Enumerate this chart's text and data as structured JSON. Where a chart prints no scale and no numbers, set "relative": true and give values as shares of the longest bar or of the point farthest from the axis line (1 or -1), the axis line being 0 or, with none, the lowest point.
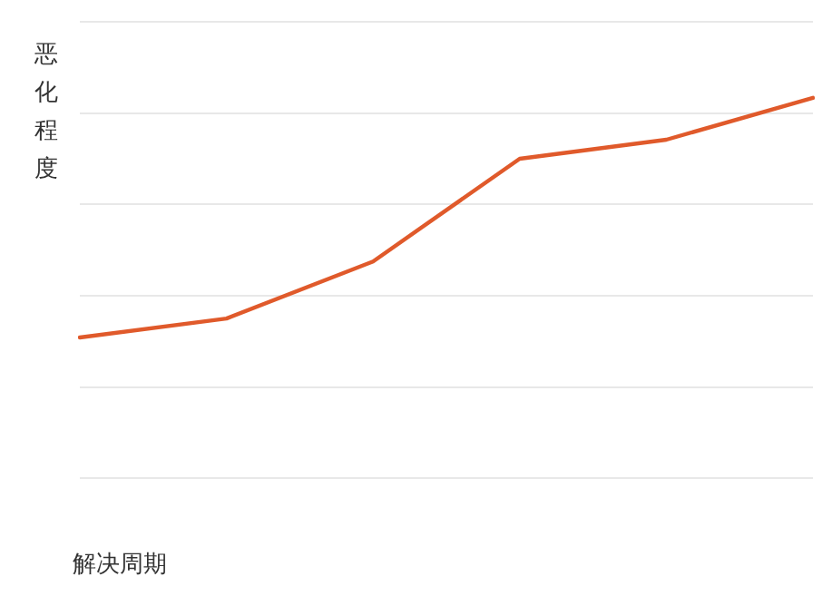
{
  "chart_data": {
    "type": "line",
    "relative": true,
    "ylabel": "恶化程度",
    "xlabel": "解决周期",
    "categories": [
      null,
      null,
      null,
      null,
      null,
      null
    ],
    "series": [
      {
        "color": "#e05a2b",
        "values": [
          0.37,
          0.42,
          0.57,
          0.84,
          0.89,
          1
        ]
      }
    ],
    "grid": "y",
    "legend": false,
    "marker": "none",
    "line_style": "solid"
  }
}
